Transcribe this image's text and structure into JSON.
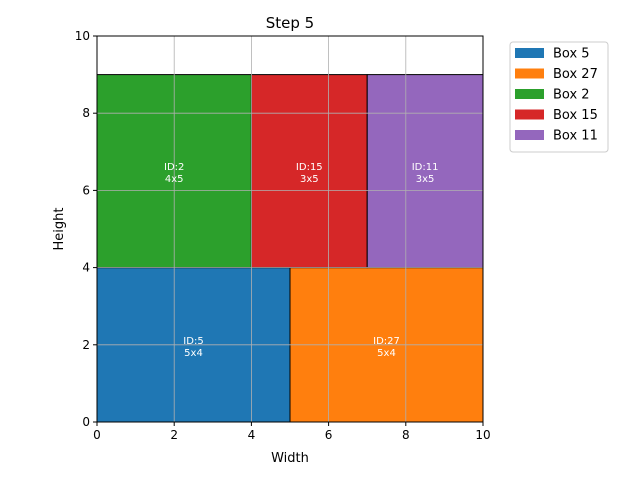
{
  "chart_data": {
    "type": "packing",
    "title": "Step 5",
    "xlabel": "Width",
    "ylabel": "Height",
    "xlim": [
      0,
      10
    ],
    "ylim": [
      0,
      10
    ],
    "xticks": [
      0,
      2,
      4,
      6,
      8,
      10
    ],
    "yticks": [
      0,
      2,
      4,
      6,
      8,
      10
    ],
    "grid": true,
    "legend_position": "outside upper-right",
    "boxes": [
      {
        "id": 5,
        "name": "Box 5",
        "label_id": "ID:5",
        "label_size": "5x4",
        "x": 0,
        "y": 0,
        "w": 5,
        "h": 4,
        "color": "#1f77b4"
      },
      {
        "id": 27,
        "name": "Box 27",
        "label_id": "ID:27",
        "label_size": "5x4",
        "x": 5,
        "y": 0,
        "w": 5,
        "h": 4,
        "color": "#ff7f0e"
      },
      {
        "id": 2,
        "name": "Box 2",
        "label_id": "ID:2",
        "label_size": "4x5",
        "x": 0,
        "y": 4,
        "w": 4,
        "h": 5,
        "color": "#2ca02c"
      },
      {
        "id": 15,
        "name": "Box 15",
        "label_id": "ID:15",
        "label_size": "3x5",
        "x": 4,
        "y": 4,
        "w": 3,
        "h": 5,
        "color": "#d62728"
      },
      {
        "id": 11,
        "name": "Box 11",
        "label_id": "ID:11",
        "label_size": "3x5",
        "x": 7,
        "y": 4,
        "w": 3,
        "h": 5,
        "color": "#9467bd"
      }
    ]
  }
}
